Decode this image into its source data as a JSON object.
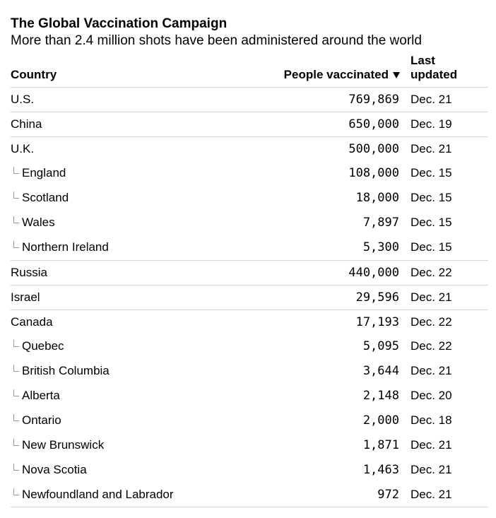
{
  "title": "The Global Vaccination Campaign",
  "subtitle": "More than 2.4 million shots have been administered around the world",
  "columns": {
    "country": "Country",
    "people": "People vaccinated",
    "updated_line1": "Last",
    "updated_line2": "updated"
  },
  "sort": {
    "column": "People vaccinated",
    "direction": "descending",
    "icon": "sort-descending-triangle"
  },
  "chart_data": {
    "type": "table",
    "title": "The Global Vaccination Campaign",
    "subtitle": "More than 2.4 million shots have been administered around the world",
    "headers": [
      "Country",
      "People vaccinated",
      "Last updated"
    ],
    "rows": [
      {
        "country": "U.S.",
        "level": 0,
        "people": "769,869",
        "value": 769869,
        "updated": "Dec. 21"
      },
      {
        "country": "China",
        "level": 0,
        "people": "650,000",
        "value": 650000,
        "updated": "Dec. 19"
      },
      {
        "country": "U.K.",
        "level": 0,
        "people": "500,000",
        "value": 500000,
        "updated": "Dec. 21"
      },
      {
        "country": "England",
        "level": 1,
        "people": "108,000",
        "value": 108000,
        "updated": "Dec. 15"
      },
      {
        "country": "Scotland",
        "level": 1,
        "people": "18,000",
        "value": 18000,
        "updated": "Dec. 15"
      },
      {
        "country": "Wales",
        "level": 1,
        "people": "7,897",
        "value": 7897,
        "updated": "Dec. 15"
      },
      {
        "country": "Northern Ireland",
        "level": 1,
        "people": "5,300",
        "value": 5300,
        "updated": "Dec. 15"
      },
      {
        "country": "Russia",
        "level": 0,
        "people": "440,000",
        "value": 440000,
        "updated": "Dec. 22"
      },
      {
        "country": "Israel",
        "level": 0,
        "people": "29,596",
        "value": 29596,
        "updated": "Dec. 21"
      },
      {
        "country": "Canada",
        "level": 0,
        "people": "17,193",
        "value": 17193,
        "updated": "Dec. 22"
      },
      {
        "country": "Quebec",
        "level": 1,
        "people": "5,095",
        "value": 5095,
        "updated": "Dec. 22"
      },
      {
        "country": "British Columbia",
        "level": 1,
        "people": "3,644",
        "value": 3644,
        "updated": "Dec. 21"
      },
      {
        "country": "Alberta",
        "level": 1,
        "people": "2,148",
        "value": 2148,
        "updated": "Dec. 20"
      },
      {
        "country": "Ontario",
        "level": 1,
        "people": "2,000",
        "value": 2000,
        "updated": "Dec. 18"
      },
      {
        "country": "New Brunswick",
        "level": 1,
        "people": "1,871",
        "value": 1871,
        "updated": "Dec. 21"
      },
      {
        "country": "Nova Scotia",
        "level": 1,
        "people": "1,463",
        "value": 1463,
        "updated": "Dec. 21"
      },
      {
        "country": "Newfoundland and Labrador",
        "level": 1,
        "people": "972",
        "value": 972,
        "updated": "Dec. 21"
      }
    ]
  },
  "colors": {
    "rule": "#d5d5d5",
    "elbow": "#9a9a9a",
    "text": "#000000"
  }
}
